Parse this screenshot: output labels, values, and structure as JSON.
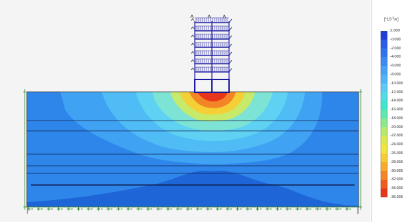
{
  "legend": {
    "unit_prefix": "[*10",
    "unit_exp": "-3",
    "unit_suffix": "m]",
    "labels": [
      "2.000",
      "-0.000",
      "-2.000",
      "-4.000",
      "-6.000",
      "-8.000",
      "-10.000",
      "-12.000",
      "-14.000",
      "-16.000",
      "-18.000",
      "-20.000",
      "-22.000",
      "-24.000",
      "-26.000",
      "-28.000",
      "-30.000",
      "-32.000",
      "-34.000",
      "-36.000"
    ],
    "colors": [
      "#1f3fd8",
      "#2a5ee8",
      "#2f74ef",
      "#3a8af2",
      "#4aa0f5",
      "#52b5f7",
      "#5dcaf5",
      "#4fdde6",
      "#3fe5cf",
      "#5ee8ad",
      "#8ae88d",
      "#b6ea6a",
      "#dce94e",
      "#f2e53c",
      "#f6cb33",
      "#f7aa2c",
      "#f58526",
      "#f05c20",
      "#e8361a",
      "#e01414"
    ]
  },
  "model": {
    "colors": {
      "soil_base": "#1e66d8",
      "contour_1": "#2f86ea",
      "contour_2": "#3fa2f2",
      "contour_3": "#4fbcf5",
      "contour_4": "#5fd2f3",
      "contour_5": "#7de3d4",
      "contour_6": "#c7ea6a",
      "contour_7": "#f5cf36",
      "contour_8": "#f38526",
      "contour_9": "#e8361a",
      "frame": "#1a1aa0",
      "layer_line": "#102050",
      "support": "#2e8b2e"
    }
  }
}
